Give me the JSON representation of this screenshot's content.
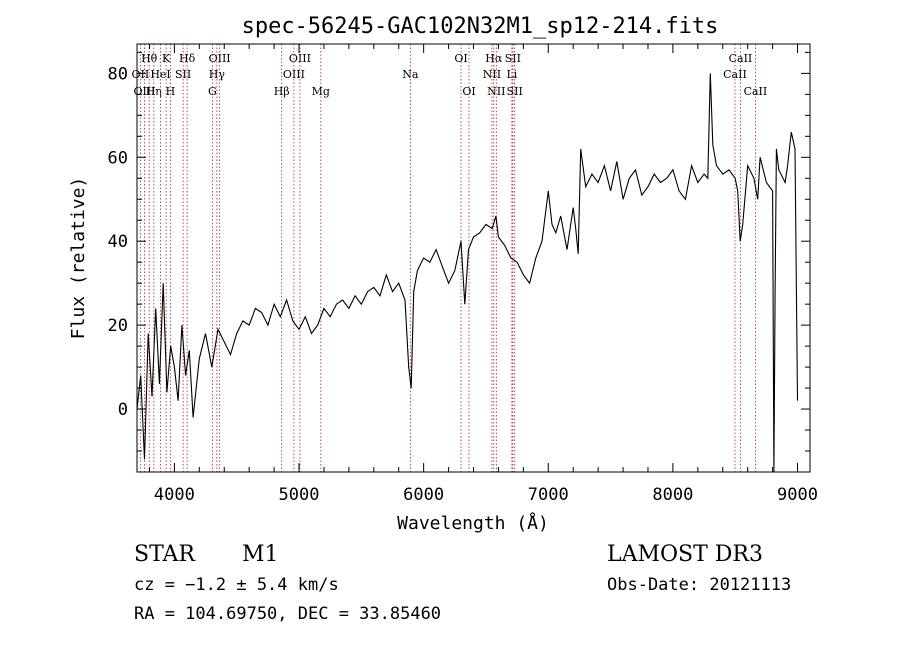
{
  "chart_data": {
    "type": "line",
    "title": "spec-56245-GAC102N32M1_sp12-214.fits",
    "xlabel": "Wavelength (Å)",
    "ylabel": "Flux (relative)",
    "xlim": [
      3700,
      9100
    ],
    "ylim": [
      -15,
      87
    ],
    "xticks": [
      4000,
      5000,
      6000,
      7000,
      8000,
      9000
    ],
    "yticks": [
      0,
      20,
      40,
      60,
      80
    ],
    "grid": false,
    "line_color": "#000000",
    "marker_color": "#b22222",
    "series": [
      {
        "name": "flux",
        "x": [
          3700,
          3730,
          3760,
          3790,
          3820,
          3850,
          3880,
          3910,
          3940,
          3970,
          4000,
          4030,
          4060,
          4090,
          4120,
          4150,
          4200,
          4250,
          4300,
          4350,
          4400,
          4450,
          4500,
          4550,
          4600,
          4650,
          4700,
          4750,
          4800,
          4850,
          4900,
          4950,
          5000,
          5050,
          5100,
          5150,
          5200,
          5250,
          5300,
          5350,
          5400,
          5450,
          5500,
          5550,
          5600,
          5650,
          5700,
          5750,
          5800,
          5850,
          5880,
          5900,
          5920,
          5950,
          6000,
          6050,
          6100,
          6150,
          6200,
          6250,
          6300,
          6330,
          6360,
          6400,
          6450,
          6500,
          6550,
          6580,
          6600,
          6650,
          6700,
          6750,
          6800,
          6850,
          6900,
          6950,
          7000,
          7030,
          7060,
          7100,
          7150,
          7200,
          7220,
          7240,
          7260,
          7300,
          7350,
          7400,
          7450,
          7500,
          7550,
          7600,
          7650,
          7700,
          7750,
          7800,
          7850,
          7900,
          7950,
          8000,
          8050,
          8100,
          8150,
          8200,
          8250,
          8280,
          8300,
          8320,
          8350,
          8400,
          8450,
          8500,
          8520,
          8540,
          8560,
          8600,
          8650,
          8680,
          8700,
          8750,
          8800,
          8810,
          8820,
          8830,
          8850,
          8900,
          8920,
          8950,
          8980,
          9000
        ],
        "y": [
          0,
          8,
          -12,
          18,
          3,
          24,
          6,
          30,
          4,
          15,
          10,
          2,
          20,
          8,
          14,
          -2,
          12,
          18,
          10,
          19,
          16,
          13,
          18,
          21,
          20,
          24,
          23,
          20,
          25,
          22,
          26,
          21,
          19,
          22,
          18,
          20,
          24,
          22,
          25,
          26,
          24,
          27,
          25,
          28,
          29,
          27,
          32,
          28,
          30,
          26,
          10,
          5,
          28,
          33,
          36,
          35,
          38,
          34,
          30,
          33,
          40,
          25,
          38,
          41,
          42,
          44,
          43,
          46,
          41,
          39,
          36,
          35,
          32,
          30,
          36,
          40,
          52,
          44,
          42,
          46,
          38,
          48,
          43,
          37,
          62,
          53,
          56,
          54,
          58,
          52,
          59,
          50,
          55,
          57,
          51,
          53,
          56,
          54,
          55,
          57,
          52,
          50,
          58,
          54,
          56,
          55,
          80,
          63,
          58,
          56,
          57,
          55,
          52,
          40,
          44,
          58,
          55,
          50,
          60,
          54,
          52,
          -15,
          28,
          62,
          57,
          54,
          58,
          66,
          62,
          2
        ]
      }
    ],
    "line_markers": [
      {
        "label": "Hθ",
        "wavelength": 3798,
        "row": 1
      },
      {
        "label": "OII",
        "wavelength": 3727,
        "row": 2
      },
      {
        "label": "OIII",
        "wavelength": 3760,
        "row": 3
      },
      {
        "label": "Hη",
        "wavelength": 3835,
        "row": 3
      },
      {
        "label": "HeI",
        "wavelength": 3889,
        "row": 2
      },
      {
        "label": "K",
        "wavelength": 3934,
        "row": 1
      },
      {
        "label": "H",
        "wavelength": 3968,
        "row": 3
      },
      {
        "label": "SII",
        "wavelength": 4070,
        "row": 2
      },
      {
        "label": "Hδ",
        "wavelength": 4102,
        "row": 1
      },
      {
        "label": "OIII",
        "wavelength": 4363,
        "row": 1
      },
      {
        "label": "Hγ",
        "wavelength": 4341,
        "row": 2
      },
      {
        "label": "G",
        "wavelength": 4305,
        "row": 3
      },
      {
        "label": "Hβ",
        "wavelength": 4861,
        "row": 3
      },
      {
        "label": "OIII",
        "wavelength": 5007,
        "row": 1
      },
      {
        "label": "OIII",
        "wavelength": 4959,
        "row": 2
      },
      {
        "label": "Mg",
        "wavelength": 5175,
        "row": 3
      },
      {
        "label": "Na",
        "wavelength": 5893,
        "row": 2
      },
      {
        "label": "OI",
        "wavelength": 6300,
        "row": 1
      },
      {
        "label": "OI",
        "wavelength": 6364,
        "row": 3
      },
      {
        "label": "Hα",
        "wavelength": 6563,
        "row": 1
      },
      {
        "label": "NII",
        "wavelength": 6548,
        "row": 2
      },
      {
        "label": "NII",
        "wavelength": 6583,
        "row": 3
      },
      {
        "label": "SII",
        "wavelength": 6716,
        "row": 1
      },
      {
        "label": "Li",
        "wavelength": 6708,
        "row": 2
      },
      {
        "label": "SII",
        "wavelength": 6731,
        "row": 3
      },
      {
        "label": "CaII",
        "wavelength": 8542,
        "row": 1
      },
      {
        "label": "CaII",
        "wavelength": 8498,
        "row": 2
      },
      {
        "label": "CaII",
        "wavelength": 8662,
        "row": 3
      }
    ]
  },
  "footer": {
    "object_class": "STAR",
    "subclass": "M1",
    "cz": "cz = −1.2 ± 5.4 km/s",
    "radec": "RA = 104.69750, DEC =  33.85460",
    "survey": "LAMOST DR3",
    "obs_date": "Obs-Date: 20121113"
  }
}
